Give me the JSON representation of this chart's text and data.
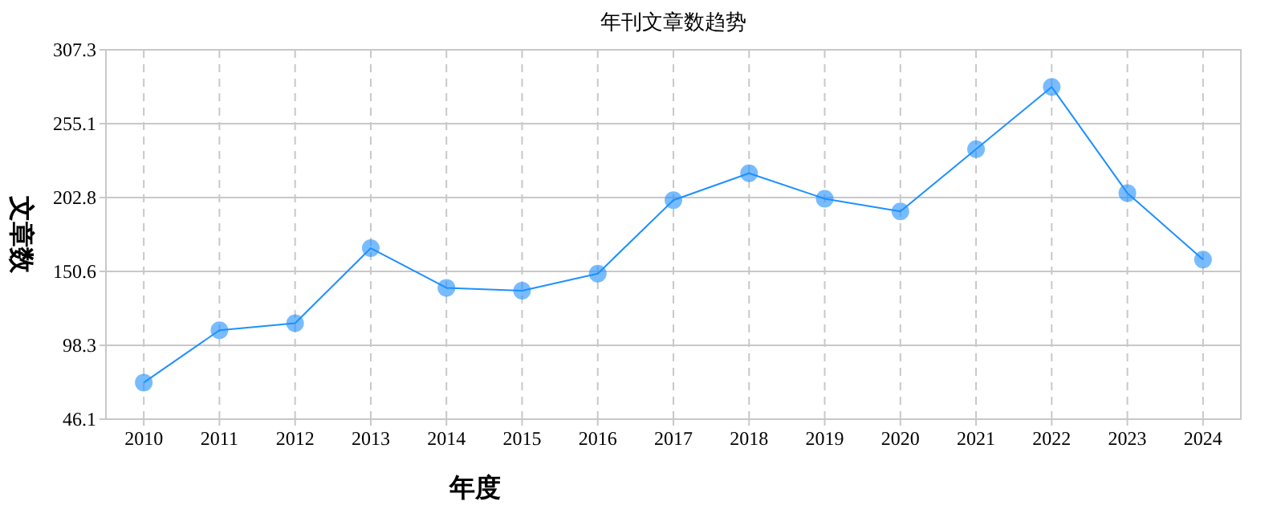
{
  "chart_data": {
    "type": "line",
    "title": "年刊文章数趋势",
    "xlabel": "年度",
    "ylabel": "文章数",
    "categories": [
      "2010",
      "2011",
      "2012",
      "2013",
      "2014",
      "2015",
      "2016",
      "2017",
      "2018",
      "2019",
      "2020",
      "2021",
      "2022",
      "2023",
      "2024"
    ],
    "series": [
      {
        "color": "#1e90ff",
        "values": [
          72,
          109,
          114,
          167,
          139,
          137,
          149,
          201,
          220,
          202,
          193,
          237,
          281,
          206,
          159
        ]
      }
    ],
    "ylim": [
      46.1,
      307.3
    ],
    "yticks": [
      46.1,
      98.3,
      150.6,
      202.8,
      255.1,
      307.3
    ],
    "grid": true,
    "marker": "circle",
    "line_style": "solid"
  }
}
